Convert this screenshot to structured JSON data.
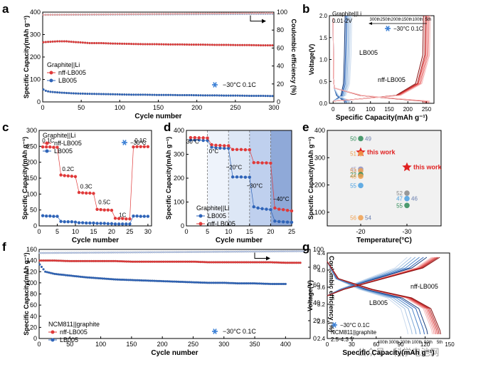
{
  "figure": {
    "watermark": "公众号 · 科学电池网",
    "colors": {
      "red": "#e03a3a",
      "blue": "#2f64b8",
      "ce_red": "#f3a6a6",
      "ce_blue": "#a9c1e6",
      "snow": "#3a7fd5",
      "star": "#e02020",
      "axis": "#000000"
    }
  },
  "chart_data": [
    {
      "panel": "a",
      "type": "scatter",
      "xlabel": "Cycle number",
      "ylabel": "Specific Capacity(mAh g⁻¹)",
      "y2label": "Coulombic efficiency (%)",
      "xlim": [
        0,
        300
      ],
      "ylim": [
        0,
        400
      ],
      "y2lim": [
        0,
        100
      ],
      "xticks": [
        0,
        50,
        100,
        150,
        200,
        250,
        300
      ],
      "yticks": [
        0,
        100,
        200,
        300,
        400
      ],
      "y2ticks": [
        0,
        20,
        40,
        60,
        80,
        100
      ],
      "legend_title": "Graphite||Li",
      "series": [
        {
          "name": "nff-LB005",
          "color": "#e03a3a",
          "axis": "left",
          "x": [
            1,
            10,
            20,
            30,
            40,
            50,
            60,
            75,
            90,
            105,
            120,
            135,
            150,
            165,
            180,
            195,
            210,
            225,
            240,
            255,
            270,
            285,
            300
          ],
          "y": [
            266,
            268,
            270,
            270,
            267,
            265,
            262,
            262,
            260,
            259,
            258,
            257,
            257,
            256,
            256,
            255,
            255,
            254,
            254,
            253,
            253,
            252,
            252
          ]
        },
        {
          "name": "LB005",
          "color": "#2f64b8",
          "axis": "left",
          "x": [
            1,
            5,
            10,
            20,
            30,
            40,
            50,
            60,
            75,
            90,
            105,
            120,
            135,
            150,
            165,
            180,
            195,
            210,
            225,
            240,
            255,
            270,
            285,
            300
          ],
          "y": [
            55,
            48,
            45,
            42,
            40,
            38,
            37,
            36,
            35,
            34,
            33,
            32,
            32,
            31,
            31,
            30,
            30,
            29,
            29,
            28,
            28,
            27,
            27,
            26
          ]
        },
        {
          "name": "CE nff-LB005",
          "color": "#f3a6a6",
          "axis": "right",
          "x": [
            1,
            300
          ],
          "y": [
            97,
            99
          ]
        },
        {
          "name": "CE LB005",
          "color": "#a9c1e6",
          "axis": "right",
          "x": [
            1,
            300
          ],
          "y": [
            97,
            98
          ]
        }
      ],
      "annotation": "−30°C 0.1C"
    },
    {
      "panel": "b",
      "type": "line",
      "xlabel": "Specific Capacity(mAh g⁻¹)",
      "ylabel": "Voltage(V)",
      "xlim": [
        -10,
        270
      ],
      "ylim": [
        0,
        2.0
      ],
      "xticks": [
        0,
        50,
        100,
        150,
        200,
        250
      ],
      "yticks": [
        0.0,
        0.5,
        1.0,
        1.5,
        2.0
      ],
      "title_lines": [
        "Graphite||Li",
        "0.01-2V"
      ],
      "cycle_labels": [
        "300th",
        "250th",
        "200th",
        "150th",
        "100th",
        "5th"
      ],
      "annotation": "−30°C 0.1C",
      "series_labels": [
        "LB005",
        "nff-LB005"
      ],
      "LB005_capacities": [
        30,
        33,
        36,
        40,
        44,
        48
      ],
      "nff_capacities": [
        240,
        245,
        248,
        252,
        255,
        258
      ]
    },
    {
      "panel": "c",
      "type": "scatter",
      "xlabel": "Cycle number",
      "ylabel": "Specific Capacity(mAh g⁻¹)",
      "xlim": [
        0,
        31
      ],
      "ylim": [
        0,
        300
      ],
      "xticks": [
        0,
        5,
        10,
        15,
        20,
        25,
        30
      ],
      "yticks": [
        0,
        50,
        100,
        150,
        200,
        250,
        300
      ],
      "legend_title": "Graphite||Li",
      "annotation": "−30°C",
      "rate_labels": [
        {
          "t": "0.1C",
          "x": 2.5,
          "y": 262
        },
        {
          "t": "0.2C",
          "x": 8,
          "y": 172
        },
        {
          "t": "0.3C",
          "x": 13,
          "y": 118
        },
        {
          "t": "0.5C",
          "x": 18,
          "y": 68
        },
        {
          "t": "1C",
          "x": 23,
          "y": 28
        },
        {
          "t": "0.1C",
          "x": 28,
          "y": 262
        }
      ],
      "series": [
        {
          "name": "nff-LB005",
          "color": "#e03a3a",
          "x": [
            1,
            2,
            3,
            4,
            5,
            6,
            7,
            8,
            9,
            10,
            11,
            12,
            13,
            14,
            15,
            16,
            17,
            18,
            19,
            20,
            21,
            22,
            23,
            24,
            25,
            26,
            27,
            28,
            29,
            30
          ],
          "y": [
            248,
            248,
            248,
            247,
            247,
            160,
            158,
            157,
            156,
            155,
            105,
            104,
            103,
            103,
            102,
            52,
            51,
            50,
            50,
            49,
            24,
            23,
            23,
            22,
            22,
            248,
            249,
            249,
            249,
            249
          ]
        },
        {
          "name": "LB005",
          "color": "#2f64b8",
          "x": [
            1,
            2,
            3,
            4,
            5,
            6,
            7,
            8,
            9,
            10,
            11,
            12,
            13,
            14,
            15,
            16,
            17,
            18,
            19,
            20,
            21,
            22,
            23,
            24,
            25,
            26,
            27,
            28,
            29,
            30
          ],
          "y": [
            32,
            31,
            31,
            30,
            30,
            14,
            13,
            13,
            13,
            12,
            10,
            10,
            9,
            9,
            9,
            8,
            8,
            8,
            7,
            7,
            6,
            6,
            6,
            6,
            6,
            31,
            31,
            30,
            30,
            30
          ]
        }
      ]
    },
    {
      "panel": "d",
      "type": "scatter",
      "xlabel": "Cycle number",
      "ylabel": "Specific Capacity(mAh g⁻¹)",
      "xlim": [
        0,
        25
      ],
      "ylim": [
        0,
        400
      ],
      "xticks": [
        0,
        5,
        10,
        15,
        20,
        25
      ],
      "yticks": [
        0,
        100,
        200,
        300,
        400
      ],
      "legend_title": "Graphite||Li",
      "temperature_labels": [
        {
          "t": "30°C",
          "x": 1.5,
          "y": 345
        },
        {
          "t": "0°C",
          "x": 6.5,
          "y": 305
        },
        {
          "t": "−20°C",
          "x": 11.3,
          "y": 238
        },
        {
          "t": "−30°C",
          "x": 16.2,
          "y": 160
        },
        {
          "t": "−40°C",
          "x": 22.5,
          "y": 105
        }
      ],
      "series": [
        {
          "name": "LB005",
          "color": "#2f64b8",
          "x": [
            1,
            2,
            3,
            4,
            5,
            6,
            7,
            8,
            9,
            10,
            11,
            12,
            13,
            14,
            15,
            16,
            17,
            18,
            19,
            20,
            21,
            22,
            23,
            24,
            25
          ],
          "y": [
            360,
            360,
            360,
            358,
            358,
            330,
            328,
            326,
            325,
            325,
            205,
            205,
            205,
            204,
            204,
            80,
            75,
            72,
            70,
            68,
            20,
            18,
            17,
            16,
            15
          ]
        },
        {
          "name": "nff-LB005",
          "color": "#e03a3a",
          "x": [
            1,
            2,
            3,
            4,
            5,
            6,
            7,
            8,
            9,
            10,
            11,
            12,
            13,
            14,
            15,
            16,
            17,
            18,
            19,
            20,
            21,
            22,
            23,
            24,
            25
          ],
          "y": [
            370,
            370,
            369,
            369,
            368,
            340,
            338,
            337,
            336,
            336,
            320,
            320,
            320,
            319,
            319,
            265,
            265,
            264,
            264,
            263,
            75,
            70,
            68,
            65,
            63
          ]
        }
      ]
    },
    {
      "panel": "e",
      "type": "scatter",
      "xlabel": "Temperature(°C)",
      "ylabel": "Specific Capacity(mAh g⁻¹)",
      "ylim": [
        50,
        400
      ],
      "yticks": [
        100,
        200,
        300,
        400
      ],
      "xticks": [
        -20,
        -30
      ],
      "points": [
        {
          "label": "50",
          "ref": "49",
          "temp": -20,
          "cap": 370,
          "color": "#2e8b57"
        },
        {
          "label": "this work",
          "temp": -20,
          "cap": 320,
          "color": "#e02020"
        },
        {
          "label": "51",
          "temp": -20,
          "cap": 315,
          "color": "#f0a050"
        },
        {
          "label": "45",
          "temp": -20,
          "cap": 258,
          "color": "#9090c0"
        },
        {
          "label": "53",
          "temp": -20,
          "cap": 252,
          "color": "#f0a050"
        },
        {
          "label": "22",
          "temp": -20,
          "cap": 238,
          "color": "#2e8b57"
        },
        {
          "label": "48",
          "temp": -20,
          "cap": 232,
          "color": "#f0a050"
        },
        {
          "label": "55",
          "temp": -20,
          "cap": 198,
          "color": "#4aa0e0"
        },
        {
          "label": "56",
          "ref": "54",
          "temp": -20,
          "cap": 80,
          "color": "#f0a050"
        },
        {
          "label": "this work",
          "temp": -30,
          "cap": 265,
          "color": "#e02020"
        },
        {
          "label": "52",
          "temp": -30,
          "cap": 170,
          "color": "#888888"
        },
        {
          "label": "47",
          "ref": "46",
          "temp": -30,
          "cap": 150,
          "color": "#4aa0e0"
        },
        {
          "label": "55",
          "temp": -30,
          "cap": 125,
          "color": "#2e8b57"
        }
      ]
    },
    {
      "panel": "f",
      "type": "scatter",
      "xlabel": "Cycle number",
      "ylabel": "Specific Capacity(mAh g⁻¹)",
      "y2label": "Coulombic efficiency (%)",
      "xlim": [
        0,
        440
      ],
      "ylim": [
        0,
        160
      ],
      "y2lim": [
        0,
        100
      ],
      "xticks": [
        0,
        50,
        100,
        150,
        200,
        250,
        300,
        350,
        400
      ],
      "yticks": [
        0,
        20,
        40,
        60,
        80,
        100,
        120,
        140,
        160
      ],
      "y2ticks": [
        0,
        20,
        40,
        60,
        80,
        100
      ],
      "legend_title": "NCM811||graphite",
      "annotation": "−30°C 0.1C",
      "series": [
        {
          "name": "nff-LB005",
          "color": "#e03a3a",
          "axis": "left",
          "x": [
            1,
            25,
            50,
            75,
            100,
            125,
            150,
            175,
            200,
            225,
            250,
            275,
            300,
            325,
            350,
            375,
            400,
            425
          ],
          "y": [
            140,
            140,
            139,
            139,
            139,
            139,
            138,
            138,
            138,
            138,
            138,
            137,
            137,
            137,
            137,
            137,
            136,
            136
          ]
        },
        {
          "name": "LB005",
          "color": "#2f64b8",
          "axis": "left",
          "x": [
            1,
            10,
            25,
            50,
            75,
            100,
            125,
            150,
            175,
            200,
            225,
            250,
            275,
            300,
            325,
            350,
            375,
            400
          ],
          "y": [
            133,
            120,
            116,
            113,
            110,
            108,
            106,
            105,
            104,
            103,
            102,
            101,
            100,
            100,
            99,
            99,
            98,
            98
          ]
        },
        {
          "name": "CE",
          "color": "#b8c8e8",
          "axis": "right",
          "x": [
            1,
            430
          ],
          "y": [
            96,
            98
          ]
        }
      ]
    },
    {
      "panel": "g",
      "type": "line",
      "xlabel": "Specific Capacity(mAh g⁻¹)",
      "ylabel": "Voltage(V)",
      "xlim": [
        0,
        150
      ],
      "ylim": [
        2.4,
        4.4
      ],
      "xticks": [
        0,
        30,
        60,
        90,
        120,
        150
      ],
      "yticks": [
        2.4,
        2.8,
        3.2,
        3.6,
        4.0,
        4.4
      ],
      "annotation": "−30°C 0.1C",
      "cell_lines": [
        "NCM811||graphite",
        "2.5-4.3 V"
      ],
      "cycle_labels": [
        "400th",
        "300th",
        "200th",
        "100th",
        "50th",
        "5th"
      ],
      "series_labels": [
        "nff-LB005",
        "LB005"
      ],
      "LB005_capacities": [
        98,
        103,
        108,
        113,
        118,
        122
      ],
      "nff_capacities": [
        128,
        130,
        132,
        134,
        136,
        138
      ]
    }
  ]
}
